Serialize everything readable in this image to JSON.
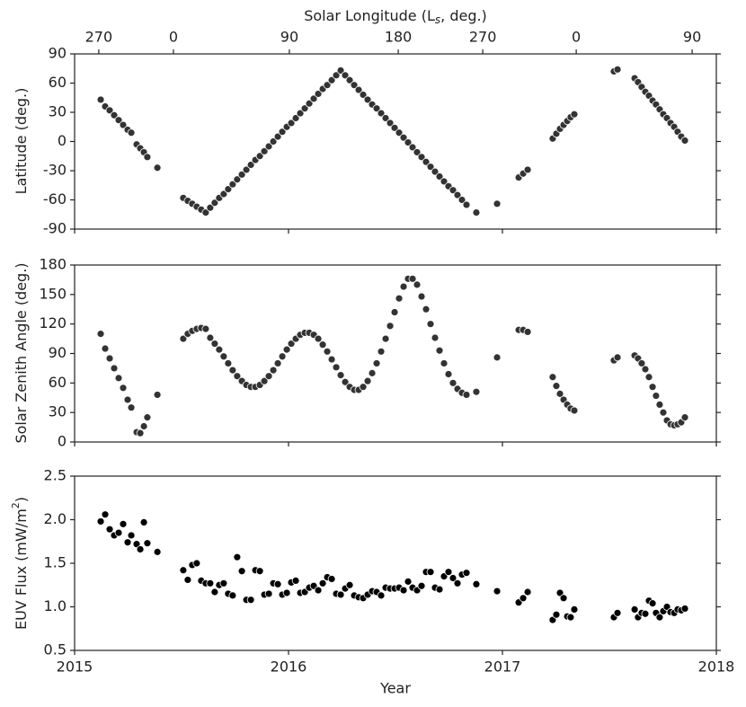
{
  "chart_data": {
    "type": "scatter",
    "xlabel": "Year",
    "xlim": [
      2015,
      2018
    ],
    "xticks": [
      2015,
      2016,
      2017,
      2018
    ],
    "x2label": [
      "Solar Longitude (L",
      "s",
      ", deg.)"
    ],
    "x2ticks": [
      {
        "value": 2015.113,
        "label": "270"
      },
      {
        "value": 2015.462,
        "label": "0"
      },
      {
        "value": 2016.004,
        "label": "90"
      },
      {
        "value": 2016.513,
        "label": "180"
      },
      {
        "value": 2016.908,
        "label": "270"
      },
      {
        "value": 2017.345,
        "label": "0"
      },
      {
        "value": 2017.887,
        "label": "90"
      }
    ],
    "x": [
      2015.122,
      2015.143,
      2015.164,
      2015.185,
      2015.206,
      2015.227,
      2015.248,
      2015.265,
      2015.29,
      2015.307,
      2015.324,
      2015.34,
      2015.387,
      2015.508,
      2015.529,
      2015.55,
      2015.571,
      2015.592,
      2015.613,
      2015.634,
      2015.655,
      2015.676,
      2015.697,
      2015.718,
      2015.739,
      2015.76,
      2015.782,
      2015.803,
      2015.824,
      2015.845,
      2015.866,
      2015.887,
      2015.908,
      2015.929,
      2015.95,
      2015.971,
      2015.992,
      2016.013,
      2016.034,
      2016.055,
      2016.076,
      2016.097,
      2016.118,
      2016.139,
      2016.16,
      2016.181,
      2016.202,
      2016.223,
      2016.244,
      2016.265,
      2016.286,
      2016.307,
      2016.328,
      2016.349,
      2016.37,
      2016.391,
      2016.412,
      2016.433,
      2016.454,
      2016.475,
      2016.496,
      2016.517,
      2016.538,
      2016.559,
      2016.58,
      2016.601,
      2016.622,
      2016.643,
      2016.664,
      2016.685,
      2016.706,
      2016.727,
      2016.748,
      2016.769,
      2016.79,
      2016.811,
      2016.832,
      2016.878,
      2016.975,
      2017.076,
      2017.097,
      2017.118,
      2017.235,
      2017.252,
      2017.269,
      2017.286,
      2017.303,
      2017.319,
      2017.336,
      2017.521,
      2017.538,
      2017.618,
      2017.634,
      2017.651,
      2017.668,
      2017.685,
      2017.702,
      2017.718,
      2017.735,
      2017.752,
      2017.769,
      2017.786,
      2017.803,
      2017.819,
      2017.836,
      2017.853
    ],
    "panels": [
      {
        "ylabel": [
          "Latitude (deg.)"
        ],
        "color": "#333333",
        "ylim": [
          -90,
          90
        ],
        "yticks": [
          -90,
          -60,
          -30,
          0,
          30,
          60,
          90
        ],
        "values": [
          43,
          36,
          32,
          27,
          22,
          17,
          12,
          9,
          -3,
          -7,
          -11,
          -16,
          -27,
          -58,
          -61,
          -64,
          -67,
          -70,
          -73,
          -68,
          -63,
          -58,
          -54,
          -49,
          -44,
          -39,
          -34,
          -29,
          -24,
          -19,
          -15,
          -10,
          -5,
          0,
          5,
          10,
          15,
          19,
          24,
          29,
          34,
          39,
          44,
          49,
          54,
          58,
          63,
          68,
          73,
          68,
          63,
          58,
          53,
          48,
          43,
          38,
          34,
          29,
          24,
          19,
          14,
          9,
          4,
          -1,
          -6,
          -11,
          -16,
          -21,
          -26,
          -31,
          -36,
          -41,
          -46,
          -50,
          -55,
          -60,
          -65,
          -73,
          -64,
          -37,
          -33,
          -29,
          3,
          8,
          13,
          17,
          21,
          25,
          28,
          72,
          74,
          65,
          61,
          56,
          51,
          47,
          42,
          38,
          33,
          28,
          24,
          19,
          15,
          10,
          5,
          1
        ]
      },
      {
        "ylabel": [
          "Solar Zenith Angle (deg.)"
        ],
        "color": "#333333",
        "ylim": [
          0,
          180
        ],
        "yticks": [
          0,
          30,
          60,
          90,
          120,
          150,
          180
        ],
        "values": [
          110,
          95,
          85,
          75,
          65,
          55,
          43,
          35,
          10,
          9,
          16,
          25,
          48,
          105,
          110,
          113,
          115,
          116,
          115,
          106,
          100,
          94,
          87,
          80,
          73,
          67,
          62,
          58,
          56,
          56,
          58,
          62,
          67,
          73,
          80,
          87,
          94,
          100,
          105,
          109,
          111,
          111,
          109,
          105,
          99,
          92,
          84,
          76,
          68,
          61,
          56,
          53,
          53,
          56,
          62,
          70,
          80,
          92,
          105,
          118,
          132,
          146,
          158,
          166,
          166,
          160,
          148,
          135,
          120,
          106,
          93,
          80,
          69,
          60,
          54,
          50,
          48,
          51,
          86,
          114,
          114,
          112,
          66,
          57,
          49,
          43,
          38,
          34,
          32,
          83,
          86,
          88,
          85,
          80,
          74,
          66,
          56,
          47,
          38,
          30,
          22,
          18,
          17,
          18,
          20,
          25
        ]
      },
      {
        "ylabel": [
          "EUV Flux (mW/m",
          "2",
          ")"
        ],
        "color": "#000000",
        "ylim": [
          0.5,
          2.5
        ],
        "yticks": [
          0.5,
          {
            "value": 1.0,
            "label": "1.0"
          },
          1.5,
          {
            "value": 2.0,
            "label": "2.0"
          },
          2.5
        ],
        "values": [
          1.98,
          2.06,
          1.89,
          1.82,
          1.85,
          1.95,
          1.74,
          1.82,
          1.72,
          1.66,
          1.97,
          1.73,
          1.63,
          1.42,
          1.31,
          1.48,
          1.5,
          1.3,
          1.27,
          1.27,
          1.17,
          1.25,
          1.27,
          1.15,
          1.13,
          1.57,
          1.41,
          1.08,
          1.08,
          1.42,
          1.41,
          1.14,
          1.15,
          1.27,
          1.26,
          1.14,
          1.16,
          1.28,
          1.3,
          1.16,
          1.17,
          1.22,
          1.24,
          1.19,
          1.27,
          1.34,
          1.32,
          1.15,
          1.14,
          1.21,
          1.25,
          1.13,
          1.11,
          1.1,
          1.14,
          1.18,
          1.17,
          1.13,
          1.22,
          1.21,
          1.21,
          1.22,
          1.19,
          1.29,
          1.22,
          1.19,
          1.24,
          1.4,
          1.4,
          1.22,
          1.2,
          1.35,
          1.4,
          1.33,
          1.27,
          1.37,
          1.39,
          1.26,
          1.18,
          1.05,
          1.1,
          1.17,
          0.85,
          0.91,
          1.16,
          1.1,
          0.89,
          0.88,
          0.97,
          0.88,
          0.93,
          0.97,
          0.88,
          0.93,
          0.92,
          1.07,
          1.04,
          0.93,
          0.88,
          0.95,
          1.0,
          0.94,
          0.93,
          0.97,
          0.96,
          0.98
        ]
      }
    ]
  }
}
